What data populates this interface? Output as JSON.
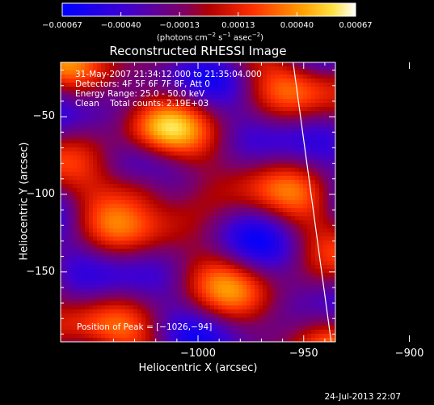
{
  "chart_data": {
    "type": "heatmap",
    "title": "Reconstructed RHESSI Image",
    "xlabel": "Heliocentric X (arcsec)",
    "ylabel": "Heliocentric Y (arcsec)",
    "xlim": [
      -1065,
      -935
    ],
    "ylim": [
      -195,
      -15
    ],
    "x_ticks": [
      -1000,
      -950,
      -900
    ],
    "x_tick_labels": [
      "−1000",
      "−950",
      "−900"
    ],
    "y_ticks": [
      -50,
      -100,
      -150
    ],
    "y_tick_labels": [
      "−50",
      "−100",
      "−150"
    ],
    "colorbar": {
      "range": [
        -0.00067,
        0.00067
      ],
      "tick_labels": [
        "−0.00067",
        "−0.00040",
        "−0.00013",
        "0.00013",
        "0.00040",
        "0.00067"
      ],
      "unit_main": "(photons cm",
      "unit_exp1": "−2",
      "unit_mid": " s",
      "unit_exp2": "−1",
      "unit_end": " asec",
      "unit_exp3": "−2",
      "unit_close": ")",
      "colors": [
        "#0000ff",
        "#5000b0",
        "#a00000",
        "#ff5000",
        "#ffc000",
        "#ffffff"
      ]
    },
    "annotations": [
      "31-May-2007 21:34:12.000 to 21:35:04.000",
      "Detectors: 4F 5F 6F 7F 8F, Att 0",
      "Energy Range: 25.0 - 50.0 keV",
      "Clean    Total counts: 2.19E+03"
    ],
    "peak_label": "Position of Peak = [−1026,−94]",
    "peak_position": [
      -1026,
      -94
    ],
    "limb_line": [
      [
        -955,
        -15
      ],
      [
        -937,
        -195
      ]
    ]
  },
  "footer": {
    "timestamp": "24-Jul-2013 22:07"
  }
}
